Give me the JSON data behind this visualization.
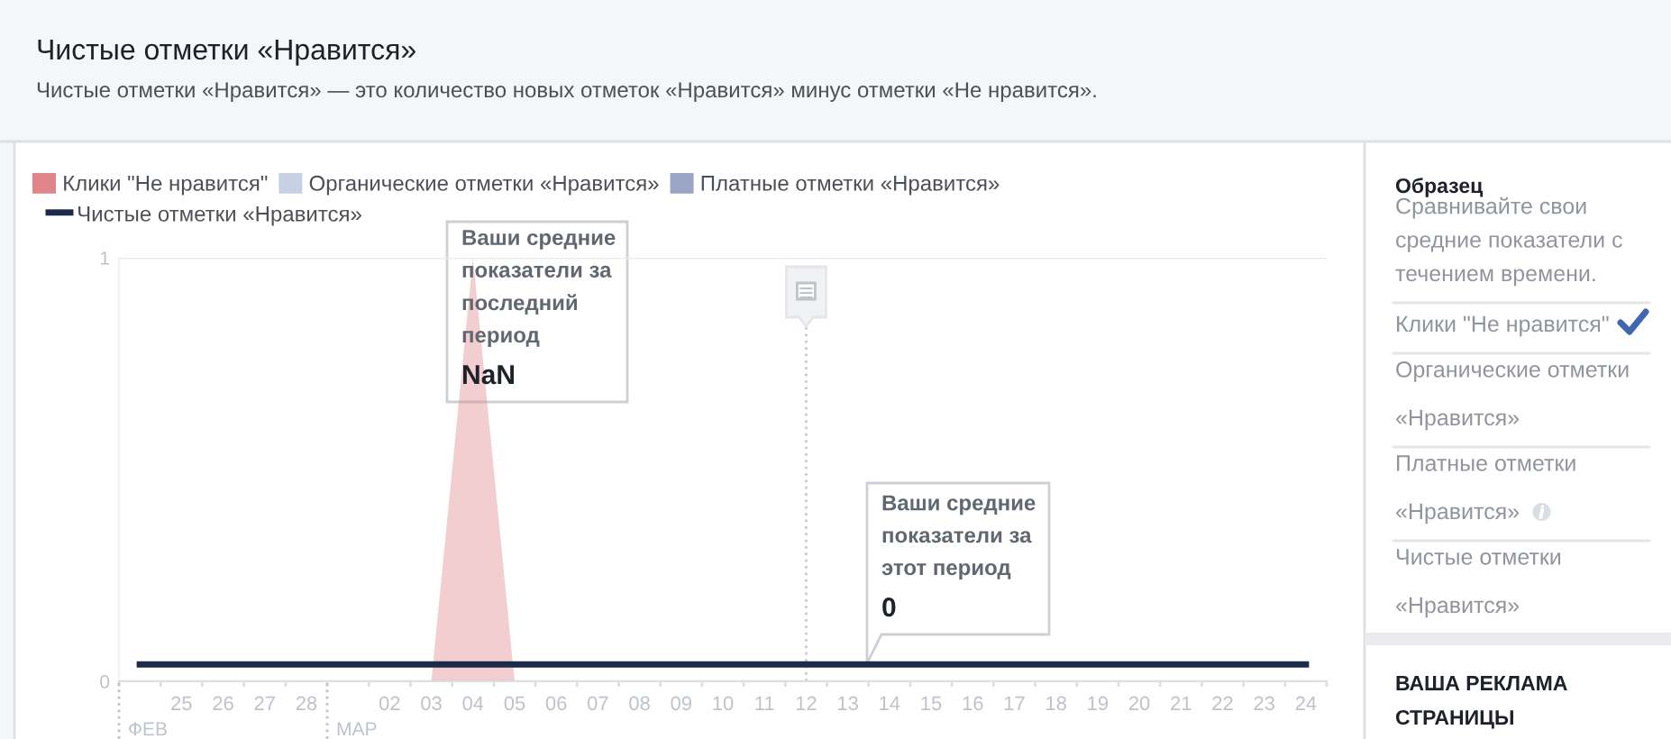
{
  "chart_data": [
    {
      "type": "area",
      "title": "Чистые отметки «Нравится»",
      "subtitle": "Чистые отметки «Нравится» — это количество новых отметок «Нравится» минус отметки «Не нравится».",
      "categories": [
        null,
        "25",
        "26",
        "27",
        "28",
        null,
        "02",
        "03",
        "04",
        "05",
        "06",
        "07",
        "08",
        "09",
        "10",
        "11",
        "12",
        "13",
        "14",
        "15",
        "16",
        "17",
        "18",
        "19",
        "20",
        "21",
        "22",
        "23",
        "24"
      ],
      "series": [
        {
          "name": "Клики \"Не нравится\"",
          "color": "#e0858a",
          "values": [
            0,
            0,
            0,
            0,
            0,
            0,
            0,
            0,
            1,
            0,
            0,
            0,
            0,
            0,
            0,
            0,
            0,
            0,
            0,
            0,
            0,
            0,
            0,
            0,
            0,
            0,
            0,
            0,
            0
          ]
        },
        {
          "name": "Органические отметки «Нравится»",
          "color": "#c8d0e3",
          "values": [
            null,
            null,
            null,
            null,
            null,
            null,
            null,
            null,
            null,
            null,
            null,
            null,
            null,
            null,
            null,
            null,
            null,
            null,
            null,
            null,
            null,
            null,
            null,
            null,
            null,
            null,
            null,
            null,
            null
          ]
        },
        {
          "name": "Платные отметки «Нравится»",
          "color": "#9aa5c6",
          "values": [
            null,
            null,
            null,
            null,
            null,
            null,
            null,
            null,
            null,
            null,
            null,
            null,
            null,
            null,
            null,
            null,
            null,
            null,
            null,
            null,
            null,
            null,
            null,
            null,
            null,
            null,
            null,
            null,
            null
          ]
        },
        {
          "name": "Чистые отметки «Нравится»",
          "type": "line",
          "color": "#1c2b4a",
          "values": [
            0.04,
            0.04,
            0.04,
            0.04,
            0.04,
            0.04,
            0.04,
            0.04,
            0.04,
            0.04,
            0.04,
            0.04,
            0.04,
            0.04,
            0.04,
            0.04,
            0.04,
            0.04,
            0.04,
            0.04,
            0.04,
            0.04,
            0.04,
            0.04,
            0.04,
            0.04,
            0.04,
            0.04,
            0.04
          ]
        }
      ],
      "ylim": [
        0,
        1
      ],
      "yticks": [
        0,
        1
      ],
      "grid": "y",
      "legend": "top left",
      "ref_lines": [
        {
          "axis": "x",
          "value": "12",
          "color": "#c8ccd2",
          "line_style": "dotted"
        }
      ],
      "annotations": [
        "ФЕВ",
        "МАР",
        "Ваши средние показатели за последний период",
        "NaN",
        "Ваши средние показатели за этот период",
        "0"
      ]
    },
    {
      "type": "other",
      "title": "Образец",
      "subtitle": "Сравнивайте свои средние показатели с течением времени.",
      "annotations": [
        "Клики \"Не нравится\"",
        "Органические отметки «Нравится»",
        "Платные отметки «Нравится»",
        "Чистые отметки «Нравится»"
      ]
    },
    {
      "type": "other",
      "title": "ВАША РЕКЛАМА СТРАНИЦЫ"
    }
  ]
}
